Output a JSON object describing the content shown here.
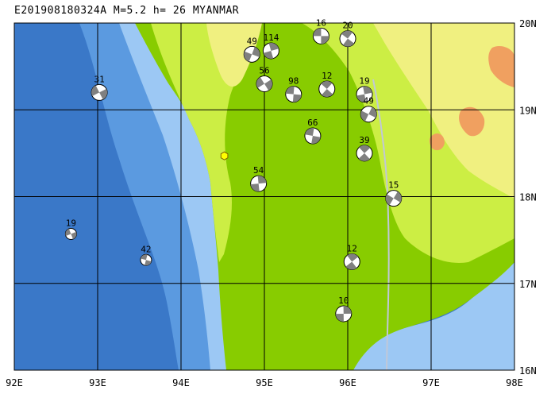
{
  "title": "E201908180324A M=5.2 h= 26 MYANMAR",
  "lon_labels": [
    "92E",
    "93E",
    "94E",
    "95E",
    "96E",
    "97E",
    "98E"
  ],
  "lat_labels": [
    "20N",
    "19N",
    "18N",
    "17N",
    "16N"
  ],
  "extent": {
    "lon": [
      92,
      98
    ],
    "lat": [
      16,
      20
    ]
  },
  "colors": {
    "deep_ocean": "#3a78c8",
    "mid_ocean": "#5b9ae0",
    "shallow_ocean": "#9cc8f4",
    "lowland": "#88cc00",
    "upland": "#ccee44",
    "highland": "#f0f080",
    "peak": "#f0a060",
    "river": "#c0c8d8",
    "grid": "#000000",
    "epicenter": "#ffff00",
    "beachball_dark": "#808080"
  },
  "epicenter": {
    "lon": 94.52,
    "lat": 18.47,
    "symbol": "hexagon"
  },
  "events": [
    {
      "label": "16",
      "lon": 95.68,
      "lat": 19.85
    },
    {
      "label": "20",
      "lon": 96.0,
      "lat": 19.82
    },
    {
      "label": "114",
      "lon": 95.08,
      "lat": 19.68
    },
    {
      "label": "49",
      "lon": 94.85,
      "lat": 19.64
    },
    {
      "label": "56",
      "lon": 95.0,
      "lat": 19.3
    },
    {
      "label": "98",
      "lon": 95.35,
      "lat": 19.18
    },
    {
      "label": "12",
      "lon": 95.75,
      "lat": 19.24
    },
    {
      "label": "19",
      "lon": 96.2,
      "lat": 19.18
    },
    {
      "label": "49",
      "lon": 96.25,
      "lat": 18.95
    },
    {
      "label": "31",
      "lon": 93.02,
      "lat": 19.2
    },
    {
      "label": "66",
      "lon": 95.58,
      "lat": 18.7
    },
    {
      "label": "39",
      "lon": 96.2,
      "lat": 18.5
    },
    {
      "label": "54",
      "lon": 94.93,
      "lat": 18.15
    },
    {
      "label": "15",
      "lon": 96.55,
      "lat": 17.98
    },
    {
      "label": "19",
      "lon": 92.68,
      "lat": 17.57
    },
    {
      "label": "42",
      "lon": 93.58,
      "lat": 17.27
    },
    {
      "label": "12",
      "lon": 96.05,
      "lat": 17.25
    },
    {
      "label": "10",
      "lon": 95.95,
      "lat": 16.65
    }
  ]
}
